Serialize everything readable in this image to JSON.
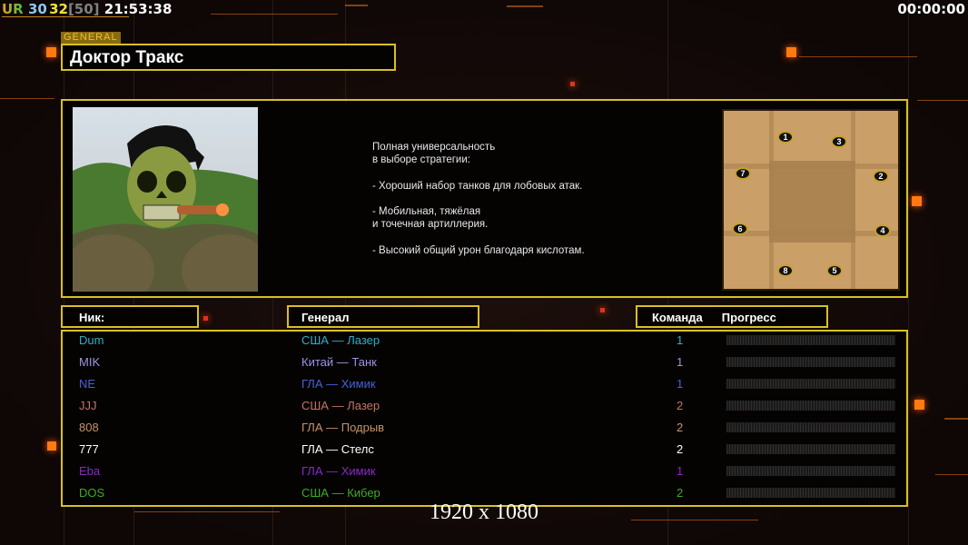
{
  "hud": {
    "ur": "UR",
    "fps": "30",
    "value": "32",
    "cap": "[50]",
    "time": "21:53:38",
    "timer": "00:00:00"
  },
  "general": {
    "label": "GENERAL",
    "name": "Доктор Тракс",
    "description": "Полная универсальность\nв выборе стратегии:\n\n- Хороший набор танков для лобовых атак.\n\n- Мобильная, тяжёлая\nи точечная артиллерия.\n\n- Высокий общий урон благодаря кислотам."
  },
  "map": {
    "spawns": [
      "1",
      "2",
      "3",
      "4",
      "5",
      "6",
      "7",
      "8"
    ]
  },
  "table": {
    "headers": {
      "nick": "Ник:",
      "general": "Генерал",
      "team": "Команда",
      "progress": "Прогресс"
    },
    "rows": [
      {
        "nick": "Dum",
        "general": "США — Лазер",
        "team": "1",
        "color": "#2fb0c8",
        "progress": 0
      },
      {
        "nick": "MIK",
        "general": "Китай — Танк",
        "team": "1",
        "color": "#9c94e4",
        "progress": 0
      },
      {
        "nick": "NE",
        "general": "ГЛА — Химик",
        "team": "1",
        "color": "#4462d8",
        "progress": 0
      },
      {
        "nick": "JJJ",
        "general": "США — Лазер",
        "team": "2",
        "color": "#c47464",
        "progress": 0
      },
      {
        "nick": "808",
        "general": "ГЛА — Подрыв",
        "team": "2",
        "color": "#c49468",
        "progress": 0
      },
      {
        "nick": "777",
        "general": "ГЛА — Стелс",
        "team": "2",
        "color": "#ffffff",
        "progress": 0
      },
      {
        "nick": "Eba",
        "general": "ГЛА — Химик",
        "team": "1",
        "color": "#8a28c8",
        "progress": 0
      },
      {
        "nick": "DOS",
        "general": "США — Кибер",
        "team": "2",
        "color": "#44a828",
        "progress": 0
      }
    ]
  },
  "resolution": "1920 x 1080"
}
